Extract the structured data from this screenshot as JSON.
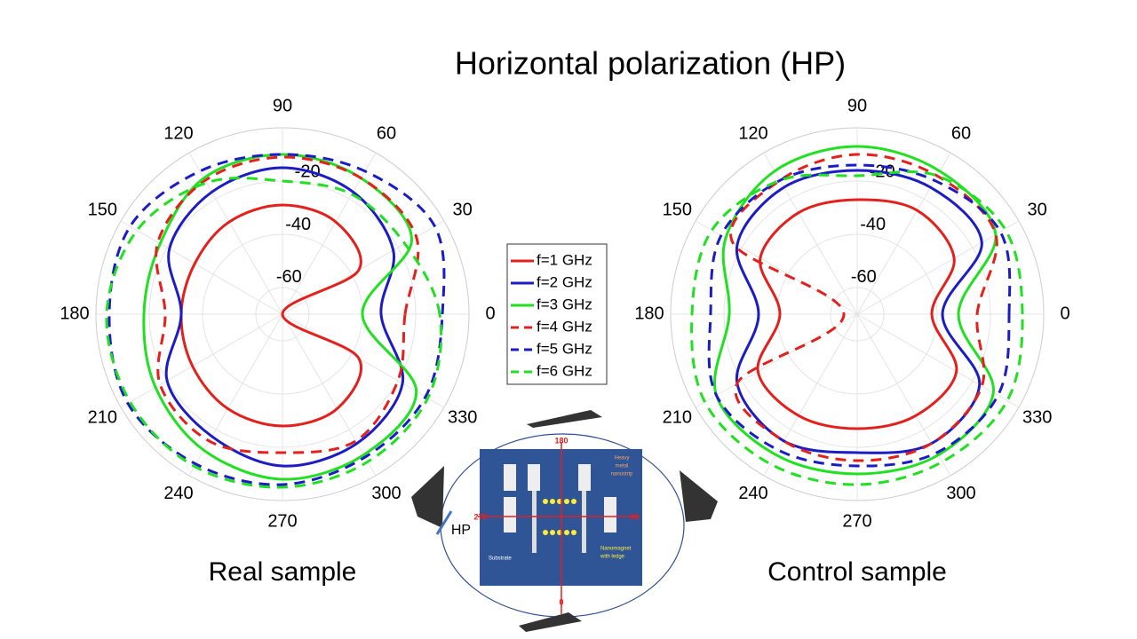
{
  "slide_title": "Horizontal polarization (HP)",
  "chart_data": [
    {
      "type": "polar",
      "title": "Real sample",
      "theta": [
        0,
        30,
        60,
        90,
        120,
        150,
        180,
        210,
        240,
        270,
        300,
        330
      ],
      "rlim": [
        -70,
        0
      ],
      "rticks": [
        -60,
        -40,
        -20
      ],
      "thetaticks": [
        0,
        30,
        60,
        90,
        120,
        150,
        180,
        210,
        240,
        270,
        300,
        330
      ],
      "grid": true,
      "series": [
        {
          "name": "f=1 GHz",
          "color": "#e3201c",
          "linestyle": "solid",
          "values": [
            -70,
            -37,
            -30,
            -29,
            -30,
            -32,
            -32,
            -31,
            -29,
            -28,
            -29,
            -37
          ]
        },
        {
          "name": "f=2 GHz",
          "color": "#1c1cc4",
          "linestyle": "solid",
          "values": [
            -33,
            -22,
            -17,
            -15,
            -17,
            -21,
            -32,
            -20,
            -17,
            -13,
            -14,
            -18
          ]
        },
        {
          "name": "f=3 GHz",
          "color": "#21e021",
          "linestyle": "solid",
          "values": [
            -40,
            -14,
            -11,
            -10,
            -11,
            -17,
            -18,
            -15,
            -11,
            -8,
            -9,
            -12
          ]
        },
        {
          "name": "f=4 GHz",
          "color": "#e3201c",
          "linestyle": "dashed",
          "values": [
            -24,
            -12,
            -11,
            -11,
            -12,
            -16,
            -26,
            -17,
            -15,
            -18,
            -15,
            -20
          ]
        },
        {
          "name": "f=5 GHz",
          "color": "#1c1cc4",
          "linestyle": "dashed",
          "values": [
            -10,
            -4,
            -8,
            -10,
            -8,
            -4,
            -5,
            -3,
            -5,
            -6,
            -8,
            -8
          ]
        },
        {
          "name": "f=6 GHz",
          "color": "#21e021",
          "linestyle": "dashed",
          "values": [
            -11,
            -17,
            -18,
            -20,
            -13,
            -7,
            -4,
            -4,
            -4,
            -5,
            -6,
            -7
          ]
        }
      ]
    },
    {
      "type": "polar",
      "title": "Control sample",
      "theta": [
        0,
        30,
        60,
        90,
        120,
        150,
        180,
        210,
        240,
        270,
        300,
        330
      ],
      "rlim": [
        -70,
        0
      ],
      "rticks": [
        -60,
        -40,
        -20
      ],
      "thetaticks": [
        0,
        30,
        60,
        90,
        120,
        150,
        180,
        210,
        240,
        270,
        300,
        330
      ],
      "grid": true,
      "series": [
        {
          "name": "f=1 GHz",
          "color": "#e3201c",
          "linestyle": "solid",
          "values": [
            -42,
            -28,
            -25,
            -27,
            -26,
            -28,
            -41,
            -27,
            -26,
            -27,
            -26,
            -27
          ]
        },
        {
          "name": "f=2 GHz",
          "color": "#1c1cc4",
          "linestyle": "solid",
          "values": [
            -38,
            -16,
            -15,
            -16,
            -15,
            -18,
            -33,
            -18,
            -15,
            -18,
            -14,
            -17
          ]
        },
        {
          "name": "f=3 GHz",
          "color": "#21e021",
          "linestyle": "solid",
          "values": [
            -32,
            -10,
            -8,
            -7,
            -8,
            -13,
            -22,
            -9,
            -9,
            -10,
            -9,
            -11
          ]
        },
        {
          "name": "f=4 GHz",
          "color": "#e3201c",
          "linestyle": "dashed",
          "values": [
            -25,
            -10,
            -10,
            -10,
            -12,
            -16,
            -65,
            -18,
            -15,
            -15,
            -14,
            -16
          ]
        },
        {
          "name": "f=5 GHz",
          "color": "#1c1cc4",
          "linestyle": "dashed",
          "values": [
            -13,
            -8,
            -12,
            -14,
            -12,
            -11,
            -15,
            -9,
            -11,
            -13,
            -10,
            -9
          ]
        },
        {
          "name": "f=6 GHz",
          "color": "#21e021",
          "linestyle": "dashed",
          "values": [
            -8,
            -6,
            -10,
            -18,
            -12,
            -7,
            -8,
            -4,
            -5,
            -6,
            -6,
            -5
          ]
        }
      ]
    }
  ],
  "illustration": {
    "top_angle": "180",
    "bottom_angle": "0",
    "left_angle": "270",
    "right_angle": "90",
    "polarization": "HP",
    "substrate": "Substrate",
    "nanostrip": [
      "Heavy",
      "metal",
      "nanostrip"
    ],
    "nanomagnet": [
      "Nanomagnet",
      "with ledge"
    ]
  }
}
